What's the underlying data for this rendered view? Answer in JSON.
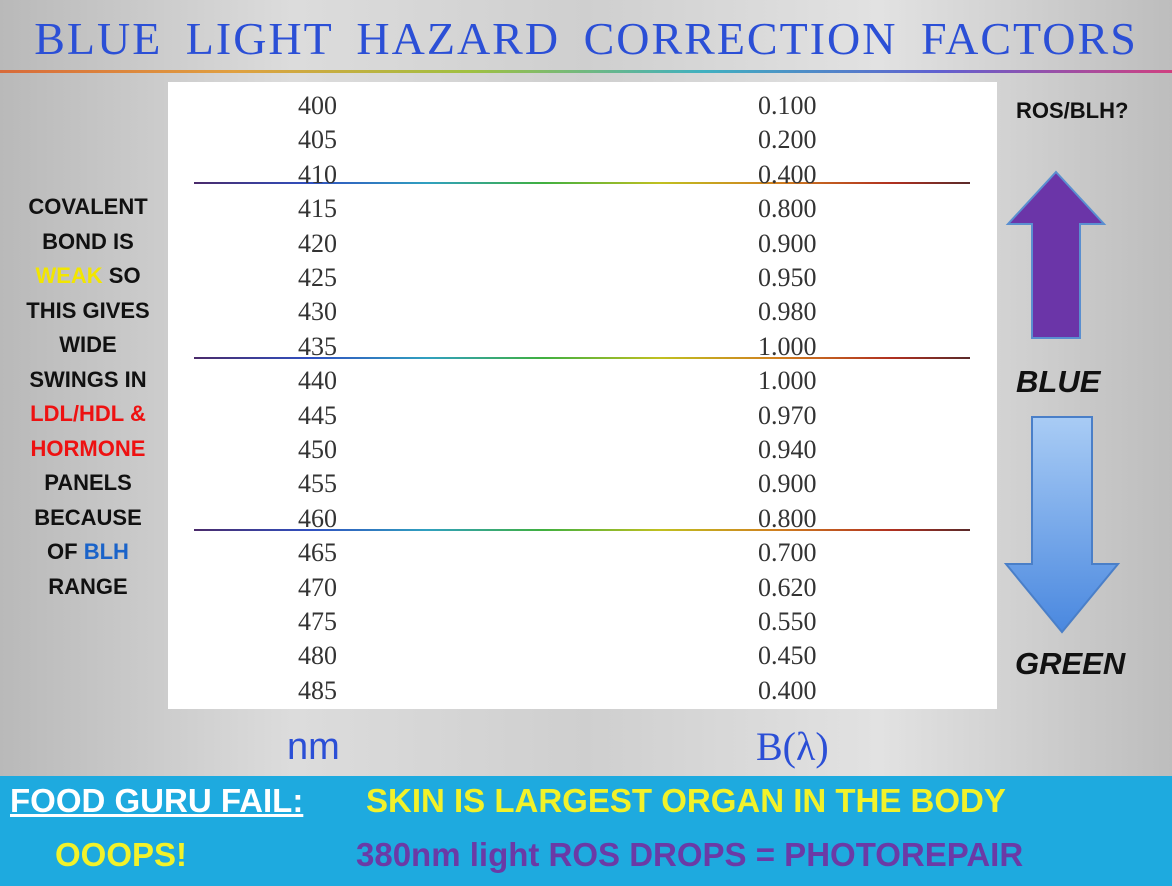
{
  "title": "BLUE LIGHT HAZARD CORRECTION FACTORS",
  "table": {
    "rows": [
      {
        "nm": "400",
        "b": "0.100"
      },
      {
        "nm": "405",
        "b": "0.200"
      },
      {
        "nm": "410",
        "b": "0.400"
      },
      {
        "nm": "415",
        "b": "0.800"
      },
      {
        "nm": "420",
        "b": "0.900"
      },
      {
        "nm": "425",
        "b": "0.950"
      },
      {
        "nm": "430",
        "b": "0.980"
      },
      {
        "nm": "435",
        "b": "1.000"
      },
      {
        "nm": "440",
        "b": "1.000"
      },
      {
        "nm": "445",
        "b": "0.970"
      },
      {
        "nm": "450",
        "b": "0.940"
      },
      {
        "nm": "455",
        "b": "0.900"
      },
      {
        "nm": "460",
        "b": "0.800"
      },
      {
        "nm": "465",
        "b": "0.700"
      },
      {
        "nm": "470",
        "b": "0.620"
      },
      {
        "nm": "475",
        "b": "0.550"
      },
      {
        "nm": "480",
        "b": "0.450"
      },
      {
        "nm": "485",
        "b": "0.400"
      }
    ],
    "col_nm_label": "nm",
    "col_b_label": "B(λ)"
  },
  "left_note": {
    "line1": "COVALENT",
    "line2": "BOND IS",
    "weak": "WEAK",
    "so": " SO",
    "line4": "THIS GIVES",
    "line5": "WIDE",
    "line6": "SWINGS IN",
    "ldl": "LDL/HDL &",
    "hormone": "HORMONE",
    "line9": "PANELS",
    "line10": "BECAUSE",
    "of": "OF ",
    "blh": "BLH",
    "line12": "RANGE"
  },
  "right_labels": {
    "ros": "ROS/BLH?",
    "blue": "BLUE",
    "green": "GREEN"
  },
  "footer": {
    "fail": "FOOD GURU FAIL:",
    "skin": "SKIN IS LARGEST ORGAN IN THE BODY",
    "ooops": "OOOPS!",
    "photorepair": "380nm light ROS DROPS = PHOTOREPAIR"
  },
  "colors": {
    "title": "#2b4fd6",
    "up_arrow": "#6b35a8",
    "down_arrow": "#5b9be8",
    "footer_bg": "#1eaadf"
  }
}
